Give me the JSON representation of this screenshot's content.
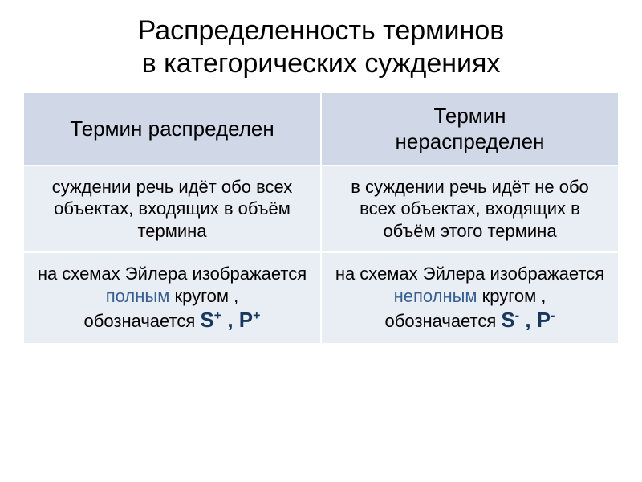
{
  "type": "document-slide",
  "background_color": "#ffffff",
  "title": {
    "line1": "Распределенность терминов",
    "line2": "в категорических суждениях",
    "fontsize": 34,
    "color": "#000000"
  },
  "table": {
    "columns": 2,
    "row_header_bg": "#d0d8e8",
    "row_body_bg": "#e9edf4",
    "border_color": "#ffffff",
    "accent_color": "#376092",
    "accent_color_dark": "#17375e",
    "header": {
      "left": "Термин распределен",
      "right_line1": "Термин",
      "right_line2": "нераспределен"
    },
    "row1": {
      "left": "суждении речь идёт обо всех объектах, входящих в объём термина",
      "right": "в суждении речь идёт не обо всех объектах, входящих в объём этого термина"
    },
    "row2": {
      "left_prefix": "на схемах Эйлера изображается ",
      "left_accent": "полным",
      "left_suffix": " кругом ,",
      "left_label": "обозначается ",
      "left_sym1": "S",
      "left_sup1": "+",
      "left_sep": " ,  ",
      "left_sym2": "P",
      "left_sup2": "+",
      "right_prefix": "на схемах Эйлера изображается ",
      "right_accent": "неполным",
      "right_suffix": " кругом ,",
      "right_label": "обозначается ",
      "right_sym1": "S",
      "right_sup1": "-",
      "right_sep": " ,  ",
      "right_sym2": "P",
      "right_sup2": "-"
    }
  }
}
